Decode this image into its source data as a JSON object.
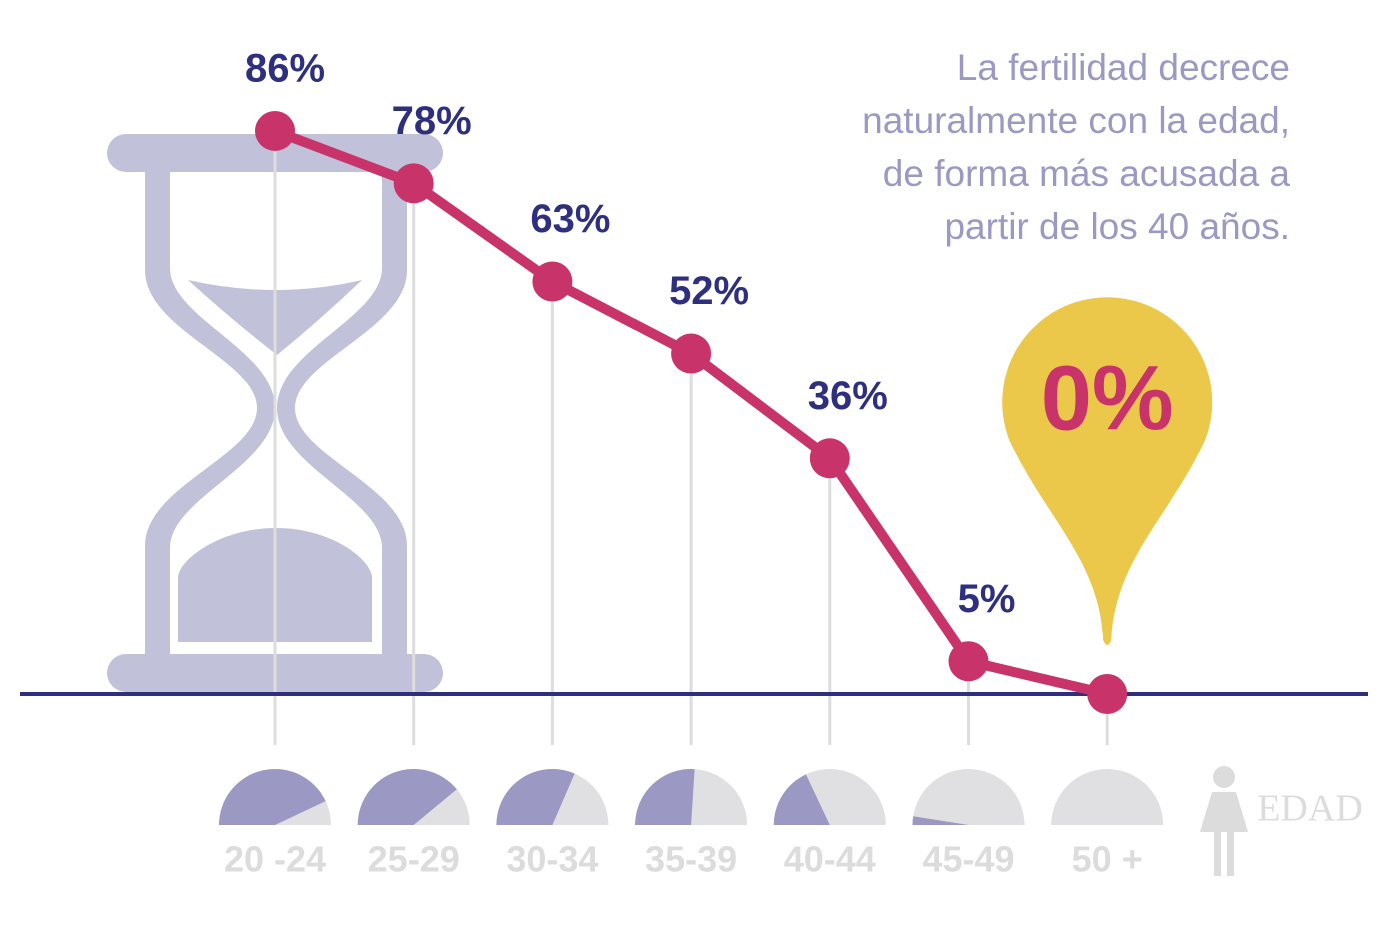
{
  "chart_data": {
    "type": "line",
    "annotation": [
      "La fertilidad decrece",
      "naturalmente con la edad,",
      "de forma más acusada a",
      "partir de los 40 años."
    ],
    "x_label": "EDAD",
    "categories": [
      "20 -24",
      "25-29",
      "30-34",
      "35-39",
      "40-44",
      "45-49",
      "50 +"
    ],
    "values": [
      86,
      78,
      63,
      52,
      36,
      5,
      0
    ],
    "value_labels": [
      "86%",
      "78%",
      "63%",
      "52%",
      "36%",
      "5%",
      "0%"
    ],
    "ylim": [
      0,
      100
    ],
    "color": "#c8346a",
    "label_color": "#2e2f7f",
    "gauge_color": "#9b98c4",
    "gauge_rest_color": "#e0e0e2",
    "highlight_color": "#ecc84a"
  }
}
